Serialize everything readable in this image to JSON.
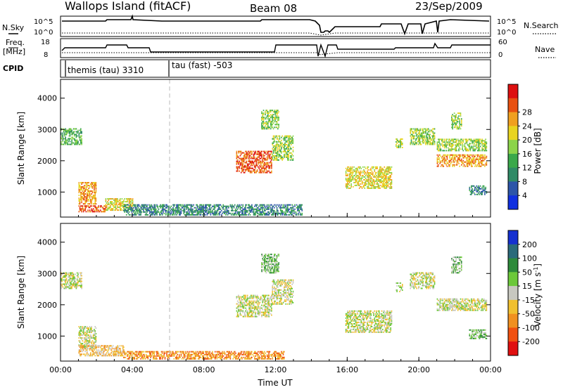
{
  "header": {
    "station": "Wallops Island (fitACF)",
    "beam": "Beam 08",
    "date": "23/Sep/2009"
  },
  "top_panels": {
    "nsky_label": "N.Sky",
    "nsearch_label": "N.Search",
    "nsky_ticks": [
      "10^5",
      "10^0"
    ],
    "nsearch_ticks": [
      "10^5",
      "10^0"
    ],
    "freq_label_line1": "Freq.",
    "freq_label_line2": "[MHz]",
    "freq_ticks": [
      "18",
      "8"
    ],
    "nave_label": "Nave",
    "nave_ticks": [
      "60",
      "0"
    ],
    "cpid_label": "CPID",
    "cpid_segments": [
      {
        "label": "themis (tau) 3310",
        "start_hour": 0
      },
      {
        "label": "tau (fast) -503",
        "start_hour": 6
      }
    ]
  },
  "chart_data": [
    {
      "type": "heatmap",
      "name": "power-panel",
      "ylabel": "Slant Range [km]",
      "xlabel": "",
      "x_ticks": [
        "00:00",
        "04:00",
        "08:00",
        "12:00",
        "16:00",
        "20:00",
        "00:00"
      ],
      "x_range_hours": [
        0,
        24
      ],
      "y_ticks": [
        1000,
        2000,
        3000,
        4000
      ],
      "ylim": [
        200,
        4600
      ],
      "colorbar": {
        "label": "Power [dB]",
        "tick_labels": [
          "4",
          "8",
          "12",
          "16",
          "20",
          "24",
          "28"
        ],
        "colors": [
          "#1030e0",
          "#2c55a8",
          "#2f8a66",
          "#3aa84a",
          "#8cd44a",
          "#e8d420",
          "#f0a020",
          "#e85010",
          "#dd1010"
        ]
      },
      "echo_regions": [
        {
          "t0": 0.0,
          "t1": 1.2,
          "r0": 2500,
          "r1": 3000,
          "level": 3
        },
        {
          "t0": 1.0,
          "t1": 2.0,
          "r0": 600,
          "r1": 1300,
          "level": 6
        },
        {
          "t0": 1.0,
          "t1": 2.5,
          "r0": 350,
          "r1": 550,
          "level": 7
        },
        {
          "t0": 2.5,
          "t1": 4.0,
          "r0": 400,
          "r1": 800,
          "level": 5
        },
        {
          "t0": 3.5,
          "t1": 13.5,
          "r0": 250,
          "r1": 600,
          "level": 2
        },
        {
          "t0": 9.8,
          "t1": 11.8,
          "r0": 1600,
          "r1": 2300,
          "level": 7
        },
        {
          "t0": 11.2,
          "t1": 12.2,
          "r0": 3000,
          "r1": 3600,
          "level": 4
        },
        {
          "t0": 11.8,
          "t1": 13.0,
          "r0": 2000,
          "r1": 2800,
          "level": 4
        },
        {
          "t0": 15.9,
          "t1": 18.5,
          "r0": 1100,
          "r1": 1800,
          "level": 5
        },
        {
          "t0": 18.7,
          "t1": 19.1,
          "r0": 2400,
          "r1": 2700,
          "level": 4
        },
        {
          "t0": 19.5,
          "t1": 20.9,
          "r0": 2500,
          "r1": 3000,
          "level": 4
        },
        {
          "t0": 21.0,
          "t1": 23.8,
          "r0": 1800,
          "r1": 2200,
          "level": 6
        },
        {
          "t0": 21.0,
          "t1": 23.8,
          "r0": 2300,
          "r1": 2700,
          "level": 4
        },
        {
          "t0": 22.8,
          "t1": 23.8,
          "r0": 900,
          "r1": 1200,
          "level": 2
        },
        {
          "t0": 21.8,
          "t1": 22.4,
          "r0": 3000,
          "r1": 3500,
          "level": 4
        }
      ]
    },
    {
      "type": "heatmap",
      "name": "velocity-panel",
      "ylabel": "Slant Range [km]",
      "xlabel": "Time UT",
      "x_ticks": [
        "00:00",
        "04:00",
        "08:00",
        "12:00",
        "16:00",
        "20:00",
        "00:00"
      ],
      "x_range_hours": [
        0,
        24
      ],
      "y_ticks": [
        1000,
        2000,
        3000,
        4000
      ],
      "ylim": [
        200,
        4600
      ],
      "colorbar": {
        "label": "Velocity [m s",
        "label_superscript": "-1",
        "label_close": "]",
        "tick_labels": [
          "200",
          "100",
          "50",
          "15",
          "-15",
          "-50",
          "-100",
          "-200"
        ],
        "colors": [
          "#1530d0",
          "#2a6a7a",
          "#2d8a3a",
          "#6cc83a",
          "#c8c8c0",
          "#f0c030",
          "#f09020",
          "#f05010",
          "#e01010"
        ]
      },
      "echo_regions": [
        {
          "t0": 0.0,
          "t1": 1.2,
          "r0": 2500,
          "r1": 3000,
          "level": 4
        },
        {
          "t0": 1.0,
          "t1": 2.0,
          "r0": 600,
          "r1": 1300,
          "level": 4
        },
        {
          "t0": 1.0,
          "t1": 3.5,
          "r0": 350,
          "r1": 700,
          "level": 5
        },
        {
          "t0": 3.5,
          "t1": 12.5,
          "r0": 250,
          "r1": 500,
          "level": 6
        },
        {
          "t0": 9.8,
          "t1": 11.8,
          "r0": 1600,
          "r1": 2300,
          "level": 4
        },
        {
          "t0": 11.2,
          "t1": 12.2,
          "r0": 3000,
          "r1": 3600,
          "level": 3
        },
        {
          "t0": 11.8,
          "t1": 13.0,
          "r0": 2000,
          "r1": 2800,
          "level": 4
        },
        {
          "t0": 15.9,
          "t1": 18.5,
          "r0": 1100,
          "r1": 1800,
          "level": 4
        },
        {
          "t0": 18.7,
          "t1": 19.1,
          "r0": 2400,
          "r1": 2700,
          "level": 4
        },
        {
          "t0": 19.5,
          "t1": 20.9,
          "r0": 2500,
          "r1": 3000,
          "level": 4
        },
        {
          "t0": 21.0,
          "t1": 23.8,
          "r0": 1800,
          "r1": 2200,
          "level": 4
        },
        {
          "t0": 22.8,
          "t1": 23.8,
          "r0": 900,
          "r1": 1200,
          "level": 3
        },
        {
          "t0": 21.8,
          "t1": 22.4,
          "r0": 3000,
          "r1": 3500,
          "level": 3
        }
      ]
    }
  ]
}
